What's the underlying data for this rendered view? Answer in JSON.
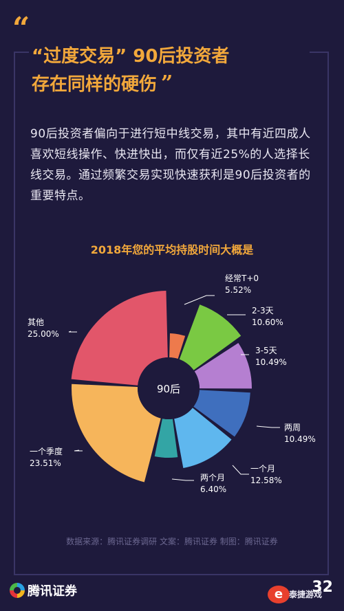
{
  "header": {
    "quote_open": "“",
    "title_line1": "“过度交易” 90后投资者",
    "title_line2": "存在同样的硬伤",
    "quote_close": "”"
  },
  "body": {
    "paragraph": "90后投资者偏向于进行短中线交易，其中有近四成人喜欢短线操作、快进快出，而仅有近25%的人选择长线交易。通过频繁交易实现快速获利是90后投资者的重要特点。"
  },
  "chart_data": {
    "type": "pie",
    "title": "2018年您的平均持股时间大概是",
    "center_label": "90后",
    "slices": [
      {
        "label": "经常T+0",
        "value": 5.52,
        "display": "5.52%",
        "color": "#ee7a4c"
      },
      {
        "label": "2-3天",
        "value": 10.6,
        "display": "10.60%",
        "color": "#7ac943"
      },
      {
        "label": "3-5天",
        "value": 10.49,
        "display": "10.49%",
        "color": "#b57fd1"
      },
      {
        "label": "两周",
        "value": 10.49,
        "display": "10.49%",
        "color": "#3f6fbe"
      },
      {
        "label": "一个月",
        "value": 12.58,
        "display": "12.58%",
        "color": "#5fb7ee"
      },
      {
        "label": "两个月",
        "value": 6.4,
        "display": "6.40%",
        "color": "#33a5a5"
      },
      {
        "label": "一个季度",
        "value": 23.51,
        "display": "23.51%",
        "color": "#f6b55b"
      },
      {
        "label": "其他",
        "value": 25.0,
        "display": "25.00%",
        "color": "#e2566a"
      }
    ]
  },
  "footer": {
    "source": "数据来源：腾讯证券调研   文案：腾讯证券   制图：腾讯证券",
    "logo_text": "腾讯证券",
    "page_number": "32",
    "watermark": "泰捷游戏"
  }
}
